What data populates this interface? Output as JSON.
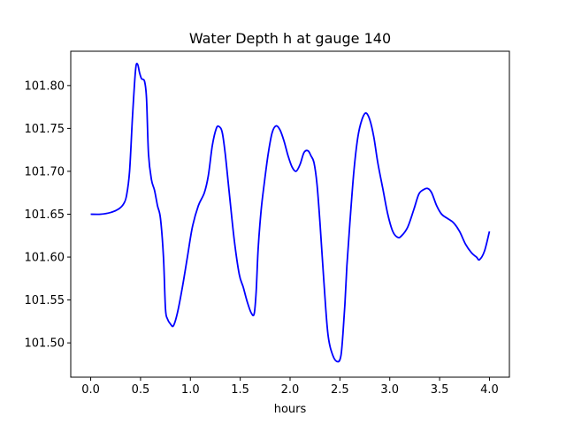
{
  "chart_data": {
    "type": "line",
    "title": "Water Depth h at gauge 140",
    "xlabel": "hours",
    "ylabel": "",
    "xlim": [
      -0.2,
      4.2
    ],
    "ylim": [
      101.46,
      101.84
    ],
    "xticks": [
      0.0,
      0.5,
      1.0,
      1.5,
      2.0,
      2.5,
      3.0,
      3.5,
      4.0
    ],
    "xtick_labels": [
      "0.0",
      "0.5",
      "1.0",
      "1.5",
      "2.0",
      "2.5",
      "3.0",
      "3.5",
      "4.0"
    ],
    "yticks": [
      101.5,
      101.55,
      101.6,
      101.65,
      101.7,
      101.75,
      101.8
    ],
    "ytick_labels": [
      "101.50",
      "101.55",
      "101.60",
      "101.65",
      "101.70",
      "101.75",
      "101.80"
    ],
    "grid": false,
    "series": [
      {
        "color": "#0000ff",
        "x": [
          0.0,
          0.1,
          0.2,
          0.28,
          0.33,
          0.36,
          0.39,
          0.42,
          0.45,
          0.47,
          0.49,
          0.51,
          0.54,
          0.56,
          0.58,
          0.61,
          0.64,
          0.67,
          0.7,
          0.73,
          0.75,
          0.77,
          0.8,
          0.83,
          0.87,
          0.92,
          0.97,
          1.02,
          1.08,
          1.14,
          1.18,
          1.22,
          1.26,
          1.29,
          1.32,
          1.35,
          1.39,
          1.44,
          1.49,
          1.53,
          1.57,
          1.61,
          1.64,
          1.66,
          1.68,
          1.71,
          1.74,
          1.78,
          1.82,
          1.86,
          1.9,
          1.94,
          1.98,
          2.02,
          2.06,
          2.1,
          2.14,
          2.18,
          2.21,
          2.24,
          2.27,
          2.3,
          2.34,
          2.38,
          2.43,
          2.48,
          2.51,
          2.53,
          2.55,
          2.57,
          2.6,
          2.64,
          2.68,
          2.72,
          2.76,
          2.8,
          2.84,
          2.88,
          2.93,
          2.98,
          3.03,
          3.08,
          3.12,
          3.18,
          3.24,
          3.29,
          3.33,
          3.38,
          3.42,
          3.47,
          3.52,
          3.58,
          3.64,
          3.7,
          3.76,
          3.82,
          3.87,
          3.9,
          3.95,
          4.0
        ],
        "y": [
          101.65,
          101.65,
          101.652,
          101.656,
          101.662,
          101.672,
          101.7,
          101.765,
          101.818,
          101.825,
          101.815,
          101.808,
          101.805,
          101.785,
          101.72,
          101.69,
          101.678,
          101.66,
          101.645,
          101.6,
          101.54,
          101.528,
          101.522,
          101.52,
          101.535,
          101.565,
          101.6,
          101.635,
          101.66,
          101.675,
          101.695,
          101.73,
          101.75,
          101.752,
          101.745,
          101.72,
          101.675,
          101.62,
          101.58,
          101.565,
          101.548,
          101.535,
          101.534,
          101.56,
          101.61,
          101.655,
          101.685,
          101.72,
          101.745,
          101.753,
          101.748,
          101.735,
          101.718,
          101.705,
          101.7,
          101.708,
          101.722,
          101.724,
          101.718,
          101.71,
          101.685,
          101.64,
          101.57,
          101.51,
          101.485,
          101.478,
          101.485,
          101.51,
          101.545,
          101.59,
          101.64,
          101.7,
          101.74,
          101.76,
          101.768,
          101.76,
          101.74,
          101.71,
          101.68,
          101.65,
          101.63,
          101.623,
          101.625,
          101.635,
          101.655,
          101.673,
          101.678,
          101.68,
          101.675,
          101.66,
          101.65,
          101.645,
          101.64,
          101.63,
          101.615,
          101.605,
          101.6,
          101.597,
          101.607,
          101.63
        ]
      }
    ]
  }
}
